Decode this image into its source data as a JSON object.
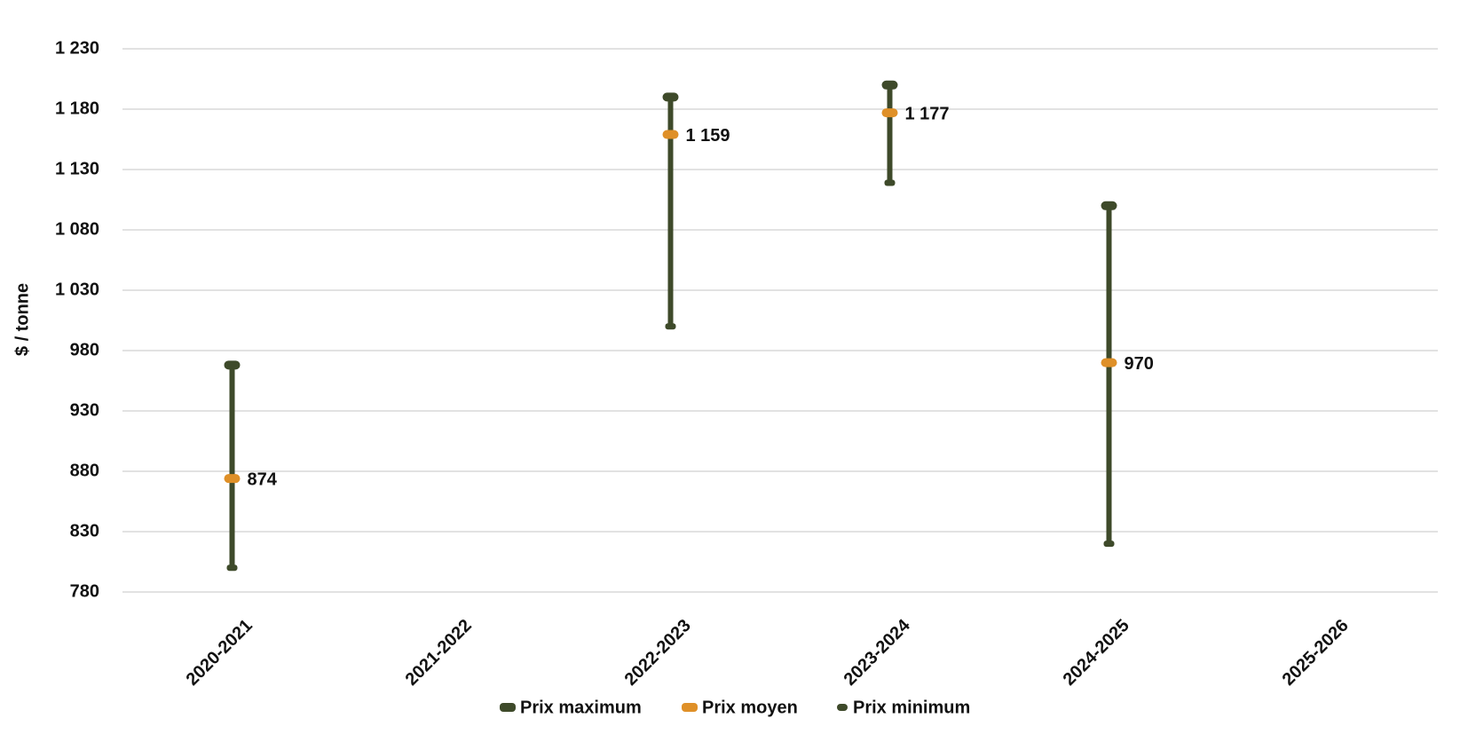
{
  "chart_data": {
    "type": "hilo",
    "y_label": "$ / tonne",
    "categories": [
      "2020-2021",
      "2021-2022",
      "2022-2023",
      "2023-2024",
      "2024-2025",
      "2025-2026"
    ],
    "series": [
      {
        "name": "Prix maximum",
        "color": "#3e4a2a",
        "values": [
          968,
          null,
          1190,
          1200,
          1100,
          null
        ]
      },
      {
        "name": "Prix moyen",
        "color": "#df9028",
        "values": [
          874,
          null,
          1159,
          1177,
          970,
          null
        ],
        "value_labels": [
          "874",
          null,
          "1 159",
          "1 177",
          "970",
          null
        ]
      },
      {
        "name": "Prix minimum",
        "color": "#3e4a2a",
        "values": [
          800,
          null,
          1000,
          1119,
          820,
          null
        ]
      }
    ],
    "ylim": [
      780,
      1230
    ],
    "yticks": [
      780,
      830,
      880,
      930,
      980,
      {
        "value": 1030,
        "label": "1 030"
      },
      {
        "value": 1080,
        "label": "1 080"
      },
      {
        "value": 1130,
        "label": "1 130"
      },
      {
        "value": 1180,
        "label": "1 180"
      },
      {
        "value": 1230,
        "label": "1 230"
      }
    ],
    "grid": true,
    "legend": "bottom"
  }
}
